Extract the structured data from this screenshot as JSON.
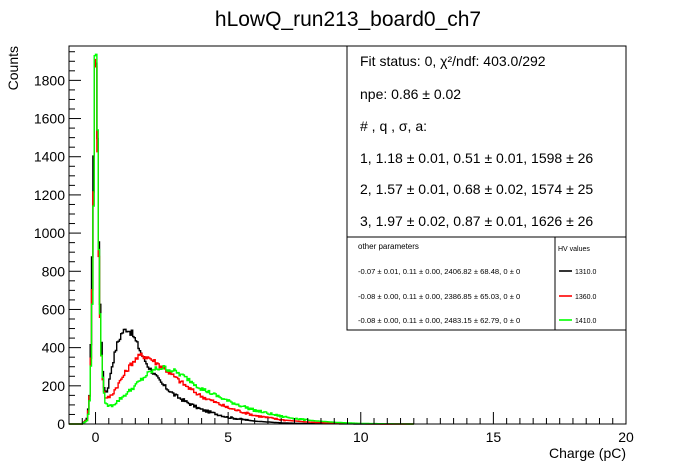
{
  "chart_data": {
    "type": "line",
    "title": "hLowQ_run213_board0_ch7",
    "xlabel": "Charge (pC)",
    "ylabel": "Counts",
    "xlim": [
      -1,
      20
    ],
    "ylim": [
      0,
      1980
    ],
    "x_ticks": [
      0,
      5,
      10,
      15,
      20
    ],
    "y_ticks": [
      0,
      200,
      400,
      600,
      800,
      1000,
      1200,
      1400,
      1600,
      1800
    ],
    "grid": false,
    "series": [
      {
        "name": "1310.0",
        "color": "#000000",
        "peak_x": 0.0,
        "peak_y": 1890,
        "x": [
          -0.5,
          -0.3,
          -0.2,
          -0.12,
          -0.06,
          0.0,
          0.06,
          0.12,
          0.2,
          0.3,
          0.4,
          0.5,
          0.6,
          0.8,
          1.0,
          1.2,
          1.4,
          1.6,
          1.8,
          2.0,
          2.5,
          3.0,
          3.5,
          4.0,
          5.0,
          6.0,
          7.0,
          8.0,
          9.0,
          10.0
        ],
        "y": [
          0,
          30,
          200,
          900,
          1600,
          1890,
          1650,
          1000,
          480,
          210,
          160,
          210,
          290,
          410,
          480,
          500,
          470,
          410,
          350,
          300,
          210,
          150,
          110,
          75,
          35,
          15,
          6,
          2,
          1,
          0
        ]
      },
      {
        "name": "1360.0",
        "color": "#ff0000",
        "peak_x": 0.0,
        "peak_y": 1890,
        "x": [
          -0.5,
          -0.3,
          -0.2,
          -0.12,
          -0.06,
          0.0,
          0.06,
          0.12,
          0.2,
          0.3,
          0.4,
          0.6,
          0.8,
          1.0,
          1.2,
          1.4,
          1.7,
          2.0,
          2.5,
          3.0,
          3.5,
          4.0,
          5.0,
          6.0,
          7.0,
          8.0,
          9.0,
          10.0,
          11.0
        ],
        "y": [
          0,
          25,
          180,
          750,
          1400,
          1890,
          1600,
          900,
          420,
          180,
          130,
          150,
          195,
          240,
          285,
          325,
          360,
          350,
          300,
          245,
          190,
          145,
          85,
          45,
          22,
          10,
          4,
          1,
          0
        ]
      },
      {
        "name": "1410.0",
        "color": "#00ff00",
        "peak_x": 0.0,
        "peak_y": 1960,
        "x": [
          -0.5,
          -0.3,
          -0.2,
          -0.12,
          -0.06,
          0.0,
          0.06,
          0.12,
          0.2,
          0.3,
          0.4,
          0.6,
          0.8,
          1.0,
          1.3,
          1.6,
          2.0,
          2.3,
          2.6,
          3.0,
          3.5,
          4.0,
          5.0,
          6.0,
          7.0,
          8.0,
          9.0,
          10.0,
          11.0,
          12.0
        ],
        "y": [
          0,
          20,
          150,
          650,
          1300,
          1960,
          1700,
          950,
          430,
          170,
          100,
          95,
          115,
          140,
          175,
          215,
          265,
          290,
          295,
          275,
          235,
          185,
          120,
          72,
          40,
          20,
          9,
          3,
          1,
          0
        ]
      }
    ],
    "fit_box": [
      "Fit status: 0, χ²/ndf: 403.0/292",
      "npe: 0.86 ± 0.02",
      "# , q , σ, a:",
      "1, 1.18 ± 0.01, 0.51 ± 0.01, 1598 ± 26",
      "2, 1.57 ± 0.01, 0.68 ± 0.02, 1574 ± 25",
      "3, 1.97 ± 0.02, 0.87 ± 0.01, 1626 ± 26"
    ],
    "legend": {
      "left_header": "other parameters",
      "right_header": "HV values",
      "rows": [
        {
          "params": "-0.07 ± 0.01, 0.11 ± 0.00, 2406.82 ± 68.48, 0 ± 0",
          "hv": "1310.0",
          "color": "#000000"
        },
        {
          "params": "-0.08 ± 0.00, 0.11 ± 0.00, 2386.85 ± 65.03, 0 ± 0",
          "hv": "1360.0",
          "color": "#ff0000"
        },
        {
          "params": "-0.08 ± 0.00, 0.11 ± 0.00, 2483.15 ± 62.79, 0 ± 0",
          "hv": "1410.0",
          "color": "#00ff00"
        }
      ]
    }
  }
}
